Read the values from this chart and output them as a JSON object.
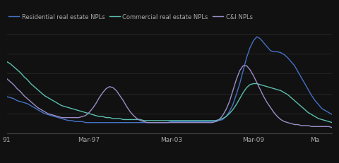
{
  "legend_labels": [
    "Residential real estate NPLs",
    "Commercial real estate NPLs",
    "C&I NPLs"
  ],
  "line_colors": [
    "#4472c4",
    "#5bbfad",
    "#9b8dc8"
  ],
  "background_color": "#111111",
  "text_color": "#aaaaaa",
  "grid_color": "#2a2a2a",
  "x_tick_labels": [
    "91",
    "Mar-97",
    "Mar-03",
    "Mar-09",
    "Ma"
  ],
  "x_tick_positions": [
    0,
    24,
    48,
    72,
    90
  ],
  "figsize": [
    4.8,
    2.32
  ],
  "dpi": 100,
  "series": {
    "residential": [
      0.37,
      0.36,
      0.35,
      0.33,
      0.32,
      0.31,
      0.3,
      0.28,
      0.26,
      0.24,
      0.22,
      0.2,
      0.19,
      0.18,
      0.17,
      0.16,
      0.15,
      0.14,
      0.13,
      0.13,
      0.12,
      0.12,
      0.12,
      0.11,
      0.11,
      0.11,
      0.11,
      0.11,
      0.11,
      0.11,
      0.11,
      0.11,
      0.11,
      0.11,
      0.11,
      0.11,
      0.11,
      0.11,
      0.11,
      0.11,
      0.11,
      0.11,
      0.11,
      0.11,
      0.11,
      0.11,
      0.11,
      0.11,
      0.12,
      0.12,
      0.12,
      0.12,
      0.12,
      0.12,
      0.12,
      0.12,
      0.12,
      0.12,
      0.12,
      0.12,
      0.12,
      0.12,
      0.13,
      0.14,
      0.17,
      0.22,
      0.29,
      0.39,
      0.5,
      0.63,
      0.76,
      0.86,
      0.93,
      0.97,
      0.95,
      0.91,
      0.87,
      0.83,
      0.82,
      0.82,
      0.81,
      0.79,
      0.76,
      0.72,
      0.68,
      0.62,
      0.56,
      0.5,
      0.44,
      0.38,
      0.33,
      0.29,
      0.25,
      0.23,
      0.21,
      0.19
    ],
    "commercial": [
      0.72,
      0.7,
      0.67,
      0.64,
      0.61,
      0.57,
      0.54,
      0.5,
      0.47,
      0.44,
      0.41,
      0.38,
      0.36,
      0.34,
      0.32,
      0.3,
      0.28,
      0.27,
      0.26,
      0.25,
      0.24,
      0.23,
      0.22,
      0.21,
      0.2,
      0.19,
      0.18,
      0.17,
      0.17,
      0.16,
      0.16,
      0.15,
      0.15,
      0.15,
      0.14,
      0.14,
      0.14,
      0.14,
      0.14,
      0.14,
      0.13,
      0.13,
      0.13,
      0.13,
      0.13,
      0.13,
      0.13,
      0.13,
      0.13,
      0.13,
      0.13,
      0.13,
      0.13,
      0.13,
      0.13,
      0.13,
      0.13,
      0.13,
      0.13,
      0.13,
      0.13,
      0.13,
      0.14,
      0.15,
      0.17,
      0.2,
      0.24,
      0.29,
      0.35,
      0.41,
      0.46,
      0.49,
      0.5,
      0.5,
      0.49,
      0.48,
      0.47,
      0.46,
      0.45,
      0.44,
      0.43,
      0.41,
      0.39,
      0.36,
      0.33,
      0.3,
      0.27,
      0.24,
      0.21,
      0.19,
      0.17,
      0.15,
      0.14,
      0.13,
      0.12,
      0.11
    ],
    "ci": [
      0.55,
      0.52,
      0.49,
      0.45,
      0.42,
      0.38,
      0.35,
      0.32,
      0.29,
      0.26,
      0.24,
      0.22,
      0.2,
      0.19,
      0.18,
      0.17,
      0.16,
      0.16,
      0.16,
      0.16,
      0.16,
      0.16,
      0.17,
      0.18,
      0.21,
      0.25,
      0.3,
      0.36,
      0.41,
      0.45,
      0.47,
      0.46,
      0.43,
      0.38,
      0.33,
      0.27,
      0.22,
      0.18,
      0.15,
      0.13,
      0.12,
      0.11,
      0.11,
      0.11,
      0.11,
      0.11,
      0.11,
      0.11,
      0.11,
      0.11,
      0.11,
      0.11,
      0.11,
      0.11,
      0.11,
      0.11,
      0.11,
      0.11,
      0.11,
      0.11,
      0.11,
      0.12,
      0.14,
      0.18,
      0.24,
      0.32,
      0.43,
      0.54,
      0.63,
      0.68,
      0.68,
      0.64,
      0.58,
      0.51,
      0.44,
      0.37,
      0.31,
      0.26,
      0.21,
      0.17,
      0.14,
      0.12,
      0.11,
      0.1,
      0.09,
      0.09,
      0.08,
      0.08,
      0.08,
      0.07,
      0.07,
      0.07,
      0.07,
      0.07,
      0.07,
      0.06
    ]
  }
}
